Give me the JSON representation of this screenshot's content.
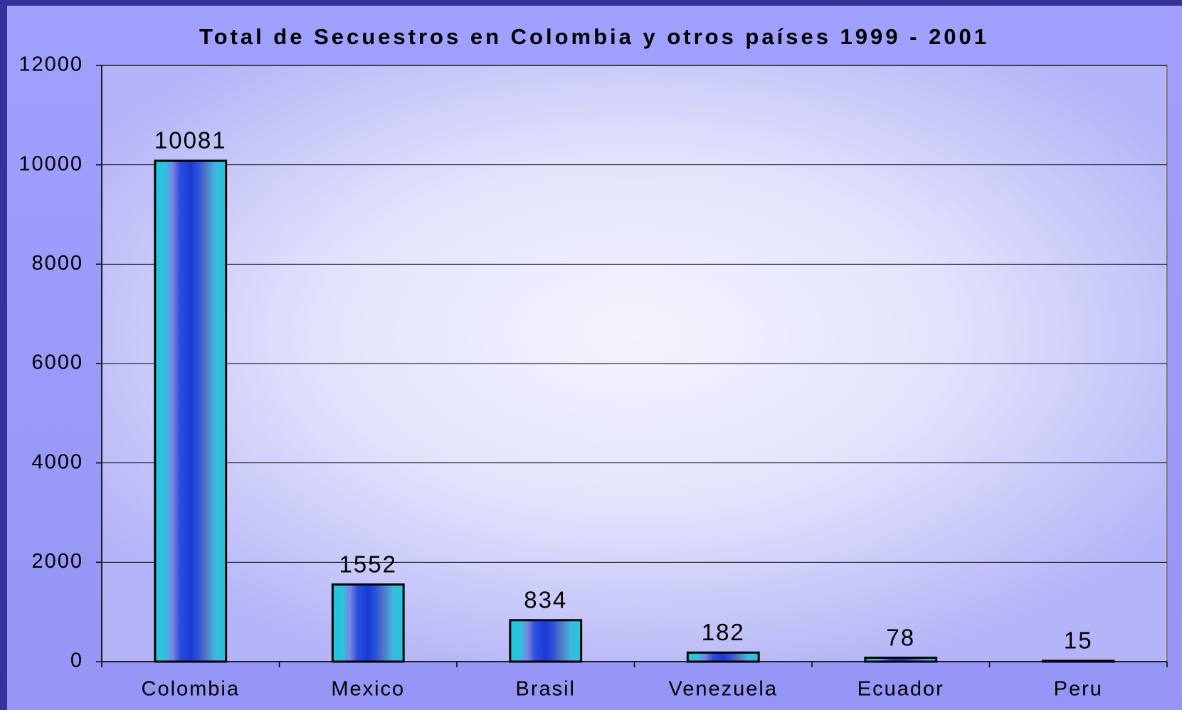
{
  "chart_data": {
    "type": "bar",
    "title": "Total de Secuestros en Colombia y otros países 1999 - 2001",
    "categories": [
      "Colombia",
      "Mexico",
      "Brasil",
      "Venezuela",
      "Ecuador",
      "Peru"
    ],
    "values": [
      10081,
      1552,
      834,
      182,
      78,
      15
    ],
    "color": "#1ec8d8",
    "ylim": [
      0,
      12000
    ],
    "yticks": [
      0,
      2000,
      4000,
      6000,
      8000,
      10000,
      12000
    ],
    "grid": true
  }
}
